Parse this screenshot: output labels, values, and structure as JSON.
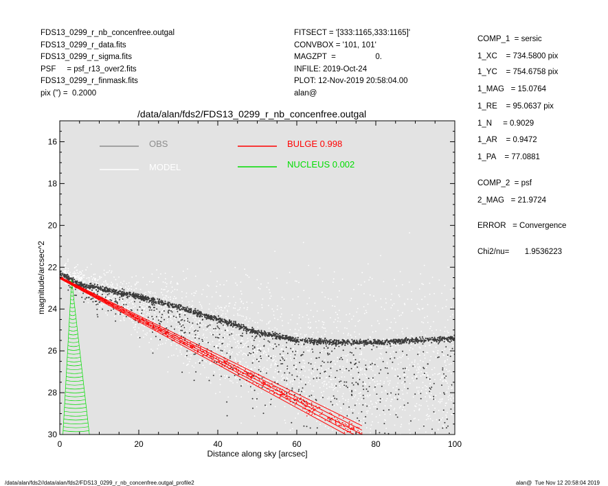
{
  "header": {
    "left": [
      "FDS13_0299_r_nb_concenfree.outgal",
      "FDS13_0299_r_data.fits",
      "FDS13_0299_r_sigma.fits",
      "PSF     = psf_r13_over2.fits",
      "FDS13_0299_r_finmask.fits",
      "pix (\") =  0.2000"
    ],
    "middle": [
      "FITSECT = '[333:1165,333:1165]'",
      "CONVBOX = '101, 101'",
      "MAGZPT  =                  0.",
      "INFILE: 2019-Oct-24",
      "PLOT: 12-Nov-2019 20:58:04.00",
      "alan@"
    ]
  },
  "params": [
    "COMP_1  = sersic",
    "1_XC    = 734.5800 pix",
    "1_YC    = 754.6758 pix",
    "1_MAG   = 15.0764",
    "1_RE    = 95.0637 pix",
    "1_N     = 0.9029",
    "1_AR    = 0.9472",
    "1_PA    = 77.0881",
    "COMP_2  = psf",
    "2_MAG   = 21.9724",
    "ERROR   = Convergence",
    "Chi2/nu=       1.9536223"
  ],
  "footer": {
    "left": "/data/alan/fds2//data/alan/fds2/FDS13_0299_r_nb_concenfree.outgal_profile2",
    "right": "alan@  Tue Nov 12 20:58:04 2019"
  },
  "chart_data": {
    "type": "scatter",
    "title": "/data/alan/fds2/FDS13_0299_r_nb_concenfree.outgal",
    "xlabel": "Distance along sky [arcsec]",
    "ylabel": "magnitude/arcsec^2",
    "xlim": [
      0,
      100
    ],
    "ylim": [
      30,
      15.0
    ],
    "y_inverted": true,
    "xticks": [
      0,
      20,
      40,
      60,
      80,
      100
    ],
    "yticks": [
      16,
      18,
      20,
      22,
      24,
      26,
      28,
      30
    ],
    "background": "#e3e3e3",
    "legend": [
      {
        "label": "OBS",
        "color": "#8c8c8c"
      },
      {
        "label": "MODEL",
        "color": "#ffffff"
      },
      {
        "label": "BULGE  0.998",
        "color": "#ff0000"
      },
      {
        "label": "NUCLEUS  0.002",
        "color": "#00dd00"
      }
    ],
    "series": [
      {
        "name": "OBS",
        "color": "#3a3a3a",
        "ridge": {
          "x": [
            0,
            5,
            10,
            20,
            30,
            40,
            50,
            60,
            70,
            80,
            90,
            100
          ],
          "y": [
            22.3,
            22.8,
            23.0,
            23.4,
            23.9,
            24.5,
            25.1,
            25.5,
            25.6,
            25.6,
            25.5,
            25.4
          ]
        }
      },
      {
        "name": "MODEL",
        "color": "#ffffff",
        "ridge": {
          "x": [
            0,
            20,
            40,
            60,
            80,
            100
          ],
          "y": [
            22.2,
            24.0,
            25.3,
            26.3,
            27.2,
            27.8
          ]
        }
      },
      {
        "name": "BULGE",
        "color": "#ff0000",
        "line": {
          "x": [
            0,
            76.5
          ],
          "y": [
            22.5,
            30.0
          ]
        }
      },
      {
        "name": "NUCLEUS",
        "color": "#00dd00",
        "fan": {
          "apex": [
            3.0,
            22.6
          ],
          "base_left": [
            0.8,
            30.0
          ],
          "base_right": [
            7.5,
            30.0
          ]
        }
      }
    ]
  }
}
